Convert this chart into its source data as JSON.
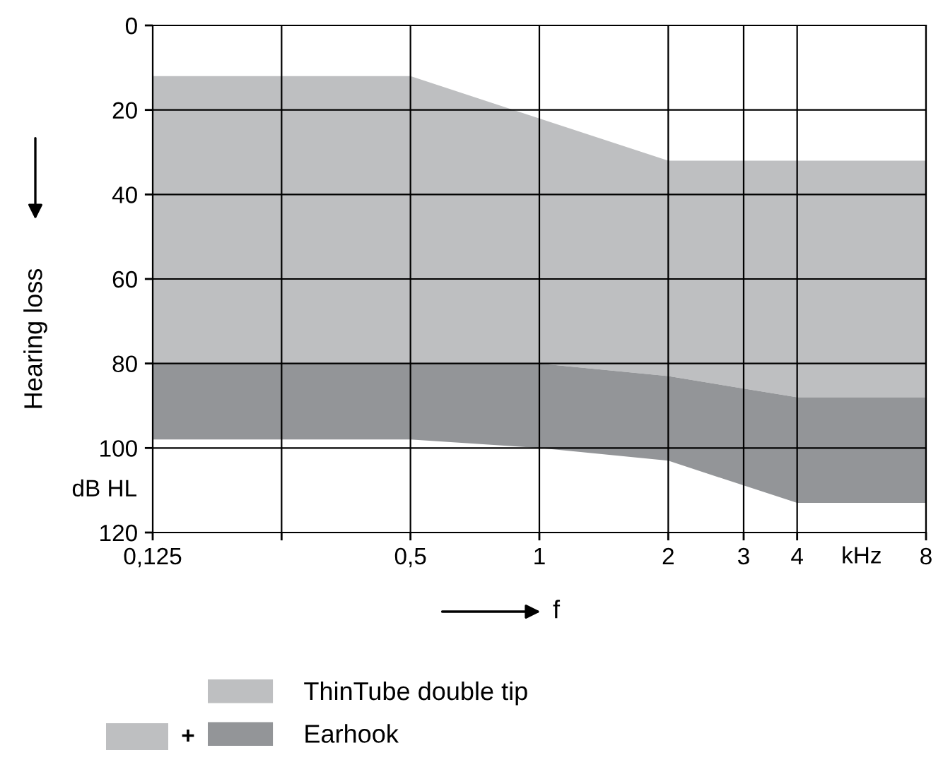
{
  "chart_data": {
    "type": "area",
    "ylabel": "Hearing loss",
    "xlabel": "f",
    "log": "x",
    "x": [
      0.125,
      0.5,
      1,
      2,
      4,
      8
    ],
    "series": [
      {
        "name": "ThinTube double tip",
        "color": "#bebfc1",
        "values": [
          null,
          null,
          null,
          null,
          null,
          null
        ],
        "lower": [
          12,
          12,
          22,
          32,
          32,
          32
        ],
        "upper": [
          80,
          80,
          80,
          83,
          88,
          88
        ]
      },
      {
        "name": "Earhook",
        "color": "#939598",
        "values": [
          null,
          null,
          null,
          null,
          null,
          null
        ],
        "lower": [
          80,
          80,
          80,
          83,
          88,
          88
        ],
        "upper": [
          98,
          98,
          100,
          103,
          113,
          113
        ]
      }
    ],
    "xlim": [
      0.125,
      8
    ],
    "xticks": [
      {
        "value": 0.125,
        "label": "0,125"
      },
      {
        "value": 0.25,
        "label": null
      },
      {
        "value": 0.5,
        "label": "0,5"
      },
      1,
      2,
      3,
      4,
      8
    ],
    "ylim": [
      120,
      0
    ],
    "yticks": [
      0,
      20,
      40,
      60,
      80,
      100,
      120
    ],
    "grid": true,
    "legend": "bottom",
    "annotations": [
      "dB HL",
      "kHz",
      "+"
    ]
  }
}
